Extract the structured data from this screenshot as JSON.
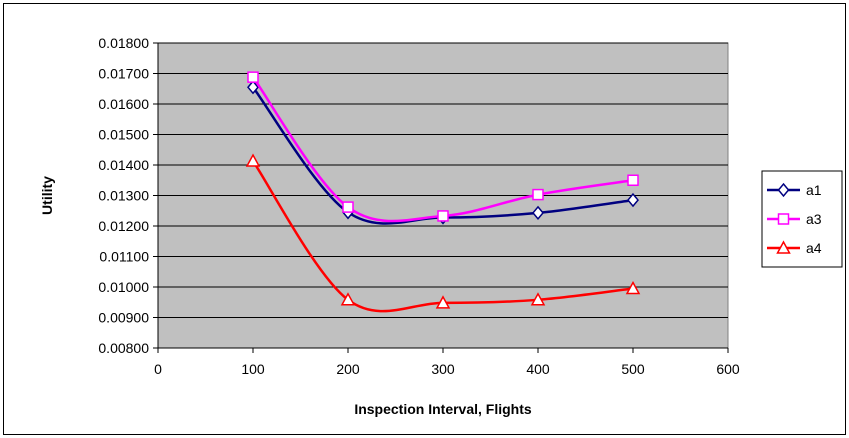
{
  "chart_data": {
    "type": "line",
    "title": "",
    "xlabel": "Inspection Interval, Flights",
    "ylabel": "Utility",
    "xlim": [
      0,
      600
    ],
    "ylim": [
      0.008,
      0.018
    ],
    "x_ticks": [
      "0",
      "100",
      "200",
      "300",
      "400",
      "500",
      "600"
    ],
    "y_ticks": [
      "0.00800",
      "0.00900",
      "0.01000",
      "0.01100",
      "0.01200",
      "0.01300",
      "0.01400",
      "0.01500",
      "0.01600",
      "0.01700",
      "0.01800"
    ],
    "x": [
      100,
      200,
      300,
      400,
      500
    ],
    "grid": "horizontal",
    "plot_background": "#c0c0c0",
    "legend_position": "right",
    "series": [
      {
        "name": "a1",
        "color": "#000080",
        "marker": "diamond",
        "values": [
          0.01655,
          0.01245,
          0.01228,
          0.01243,
          0.01285
        ]
      },
      {
        "name": "a3",
        "color": "#ff00ff",
        "marker": "square",
        "values": [
          0.01688,
          0.01262,
          0.01233,
          0.01303,
          0.0135
        ]
      },
      {
        "name": "a4",
        "color": "#ff0000",
        "marker": "triangle",
        "values": [
          0.01413,
          0.00958,
          0.00948,
          0.00958,
          0.00995
        ]
      }
    ]
  }
}
